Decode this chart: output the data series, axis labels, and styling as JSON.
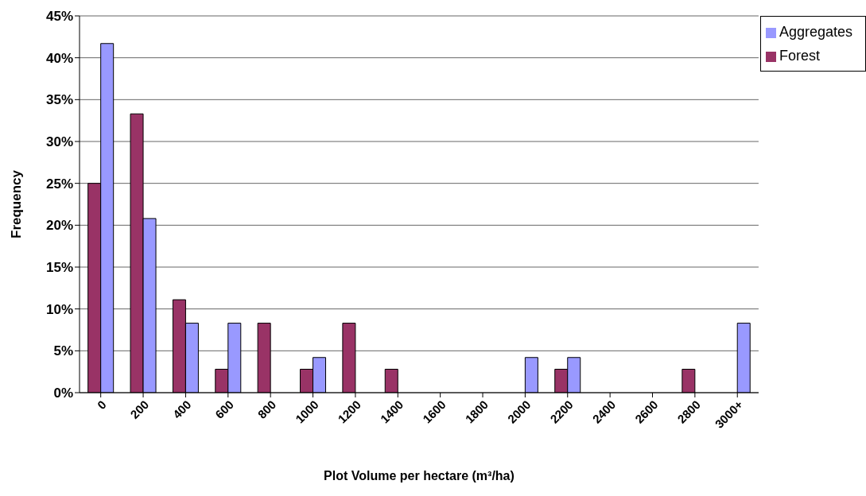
{
  "chart_data": {
    "type": "bar",
    "xlabel": "Plot Volume per hectare (m³/ha)",
    "ylabel": "Frequency",
    "categories": [
      "0",
      "200",
      "400",
      "600",
      "800",
      "1000",
      "1200",
      "1400",
      "1600",
      "1800",
      "2000",
      "2200",
      "2400",
      "2600",
      "2800",
      "3000+"
    ],
    "series": [
      {
        "name": "Forest",
        "color": "#993366",
        "values": [
          25,
          33.3,
          11.1,
          2.8,
          8.3,
          2.8,
          8.3,
          2.8,
          0,
          0,
          0,
          2.8,
          0,
          0,
          2.8,
          0
        ]
      },
      {
        "name": "Aggregates",
        "color": "#9999ff",
        "values": [
          41.7,
          20.8,
          8.3,
          8.3,
          0,
          4.2,
          0,
          0,
          0,
          0,
          4.2,
          4.2,
          0,
          0,
          0,
          8.3
        ]
      }
    ],
    "ylim": [
      0,
      45
    ],
    "yticks": [
      {
        "value": 0,
        "label": "0%"
      },
      {
        "value": 5,
        "label": "5%"
      },
      {
        "value": 10,
        "label": "10%"
      },
      {
        "value": 15,
        "label": "15%"
      },
      {
        "value": 20,
        "label": "20%"
      },
      {
        "value": 25,
        "label": "25%"
      },
      {
        "value": 30,
        "label": "30%"
      },
      {
        "value": 35,
        "label": "35%"
      },
      {
        "value": 40,
        "label": "40%"
      },
      {
        "value": 45,
        "label": "45%"
      }
    ],
    "grid": "y",
    "legend": "top right"
  }
}
